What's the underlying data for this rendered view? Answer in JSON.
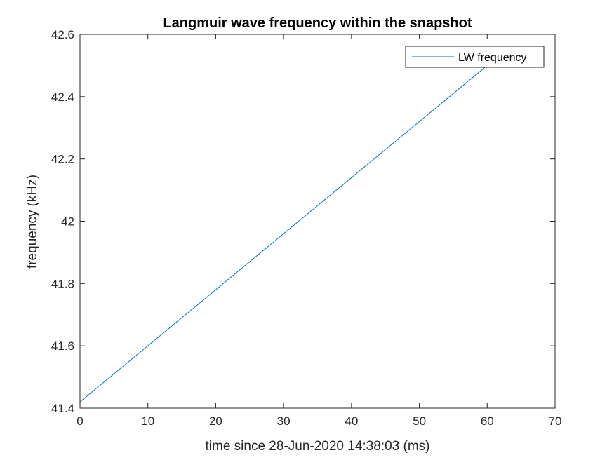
{
  "chart_data": {
    "type": "line",
    "title": "Langmuir wave frequency within the snapshot",
    "xlabel": "time since 28-Jun-2020 14:38:03 (ms)",
    "ylabel": "frequency (kHz)",
    "xlim": [
      0,
      70
    ],
    "ylim": [
      41.4,
      42.6
    ],
    "xticks": [
      0,
      10,
      20,
      30,
      40,
      50,
      60,
      70
    ],
    "yticks": [
      41.4,
      41.6,
      41.8,
      42.0,
      42.2,
      42.4,
      42.6
    ],
    "xtick_labels": [
      "0",
      "10",
      "20",
      "30",
      "40",
      "50",
      "60",
      "70"
    ],
    "ytick_labels": [
      "41.4",
      "41.6",
      "41.8",
      "42",
      "42.2",
      "42.4",
      "42.6"
    ],
    "grid": false,
    "legend_location": "top-right",
    "series": [
      {
        "name": "LW frequency",
        "color": "#0072BD",
        "x": [
          0,
          62.5
        ],
        "y": [
          41.42,
          42.545
        ]
      }
    ]
  }
}
